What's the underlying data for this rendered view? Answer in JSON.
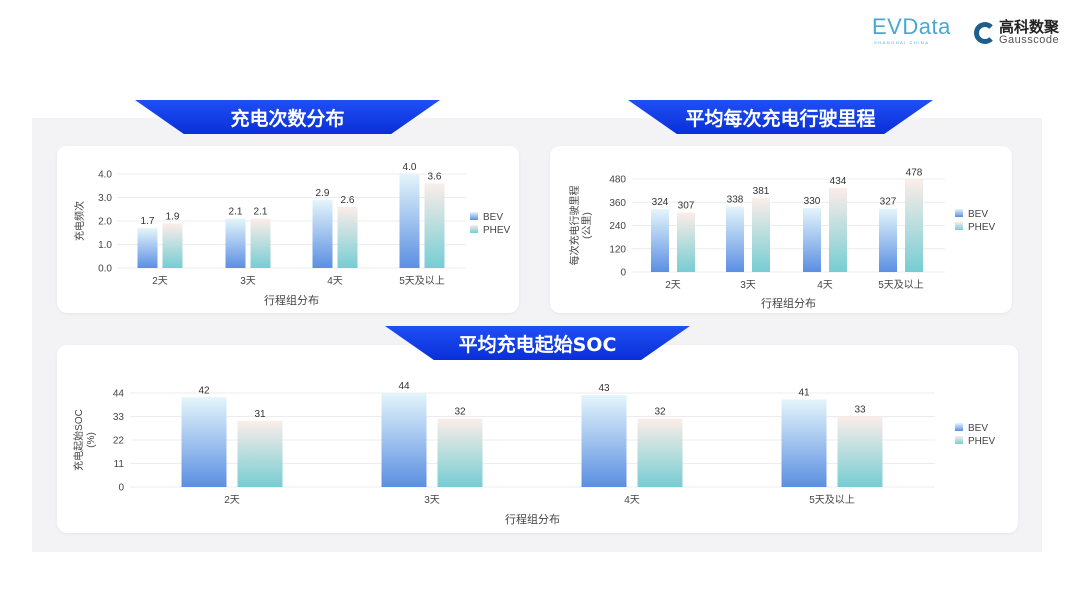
{
  "logos": {
    "evdata": "EVData",
    "evdata_sub": "SHANGHAI CHINA",
    "gauss_cn": "高科数聚",
    "gauss_en": "Gausscode"
  },
  "colors": {
    "bev_top": "#e4f5fb",
    "bev_bottom": "#5b8fe2",
    "phev_top": "#fbede9",
    "phev_bottom": "#76cdd3",
    "banner": "#1340ee"
  },
  "chart_data": [
    {
      "type": "bar",
      "title": "充电次数分布",
      "categories": [
        "2天",
        "3天",
        "4天",
        "5天及以上"
      ],
      "series": [
        {
          "name": "BEV",
          "values": [
            1.7,
            2.1,
            2.9,
            4.0
          ]
        },
        {
          "name": "PHEV",
          "values": [
            1.9,
            2.1,
            2.6,
            3.6
          ]
        }
      ],
      "xlabel": "行程组分布",
      "ylabel": "充电频次",
      "ylim": [
        0,
        4.0
      ],
      "yticks": [
        "0.0",
        "1.0",
        "2.0",
        "3.0",
        "4.0"
      ],
      "decimals": 1,
      "grid": true,
      "legend": "right"
    },
    {
      "type": "bar",
      "title": "平均每次充电行驶里程",
      "categories": [
        "2天",
        "3天",
        "4天",
        "5天及以上"
      ],
      "series": [
        {
          "name": "BEV",
          "values": [
            324,
            338,
            330,
            327
          ]
        },
        {
          "name": "PHEV",
          "values": [
            307,
            381,
            434,
            478
          ]
        }
      ],
      "xlabel": "行程组分布",
      "ylabel": "每次充电行驶里程",
      "ylabel2": "(公里)",
      "ylim": [
        0,
        480
      ],
      "yticks": [
        "0",
        "120",
        "240",
        "360",
        "480"
      ],
      "decimals": 0,
      "grid": true,
      "legend": "right"
    },
    {
      "type": "bar",
      "title": "平均充电起始SOC",
      "categories": [
        "2天",
        "3天",
        "4天",
        "5天及以上"
      ],
      "series": [
        {
          "name": "BEV",
          "values": [
            42,
            44,
            43,
            41
          ]
        },
        {
          "name": "PHEV",
          "values": [
            31,
            32,
            32,
            33
          ]
        }
      ],
      "xlabel": "行程组分布",
      "ylabel": "充电起始SOC",
      "ylabel2": "(%)",
      "ylim": [
        0,
        44
      ],
      "yticks": [
        "0",
        "11",
        "22",
        "33",
        "44"
      ],
      "decimals": 0,
      "grid": true,
      "legend": "right"
    }
  ]
}
